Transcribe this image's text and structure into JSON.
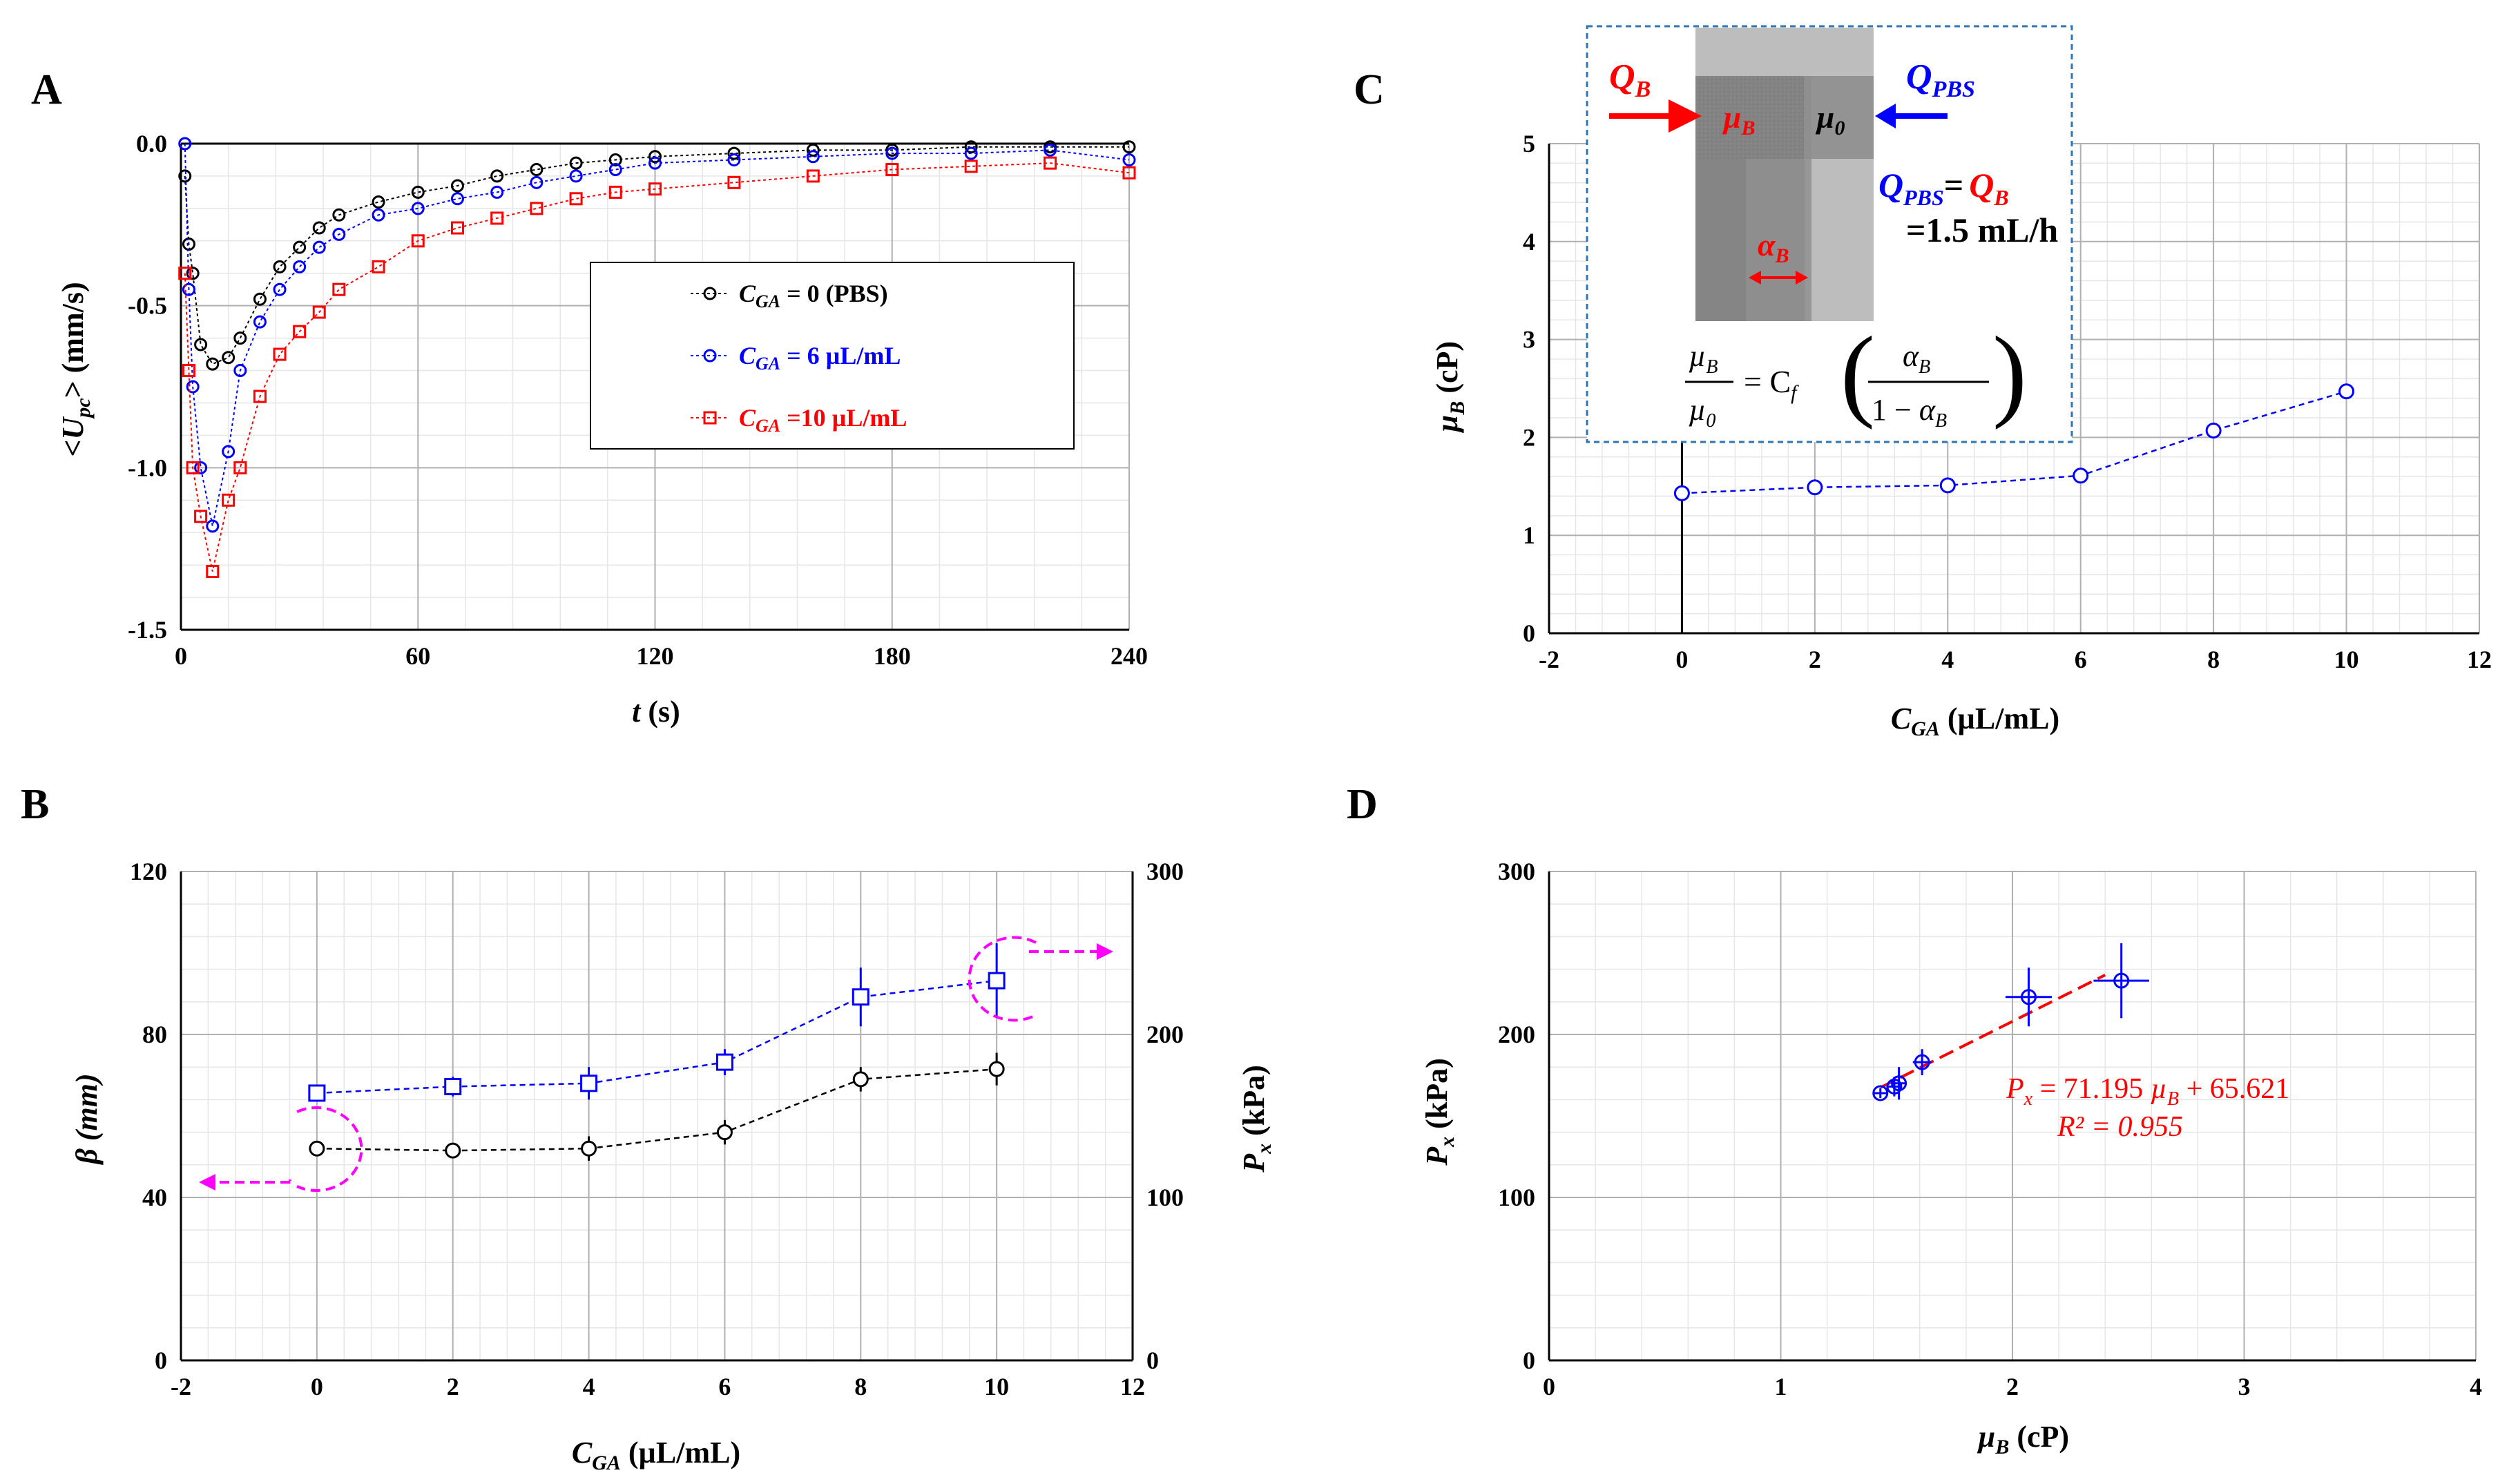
{
  "panels": {
    "A": {
      "label": "A"
    },
    "B": {
      "label": "B"
    },
    "C": {
      "label": "C"
    },
    "D": {
      "label": "D"
    }
  },
  "chart_data": [
    {
      "panel": "A",
      "type": "scatter",
      "xlabel": "t (s)",
      "ylabel": "<Upc> (mm/s)",
      "ylabel_parts": {
        "pre": "<",
        "main": "U",
        "sub": "pc",
        "post": "> (mm/s)"
      },
      "xlabel_parts": {
        "main": "t",
        "post": " (s)"
      },
      "xlim": [
        0,
        240
      ],
      "ylim": [
        -1.5,
        0
      ],
      "xticks": [
        "0",
        "60",
        "120",
        "180",
        "240"
      ],
      "yticks": [
        "0.0",
        "-0.5",
        "-1.0",
        "-1.5"
      ],
      "xtick_values": [
        0,
        60,
        120,
        180,
        240
      ],
      "ytick_values": [
        0,
        -0.5,
        -1.0,
        -1.5
      ],
      "grid": true,
      "legend_position": "center-right",
      "series": [
        {
          "name": "CGA = 0 (PBS)",
          "legend_var": "C",
          "legend_sub": "GA",
          "legend_rest": " = 0 (PBS)",
          "color": "#000000",
          "marker": "circle",
          "x": [
            1,
            2,
            3,
            5,
            8,
            12,
            15,
            20,
            25,
            30,
            35,
            40,
            50,
            60,
            70,
            80,
            90,
            100,
            110,
            120,
            140,
            160,
            180,
            200,
            220,
            240
          ],
          "y": [
            -0.1,
            -0.31,
            -0.4,
            -0.62,
            -0.68,
            -0.66,
            -0.6,
            -0.48,
            -0.38,
            -0.32,
            -0.26,
            -0.22,
            -0.18,
            -0.15,
            -0.13,
            -0.1,
            -0.08,
            -0.06,
            -0.05,
            -0.04,
            -0.03,
            -0.02,
            -0.02,
            -0.01,
            -0.01,
            -0.01
          ]
        },
        {
          "name": "CGA = 6 µL/mL",
          "legend_var": "C",
          "legend_sub": "GA",
          "legend_rest": " = 6 µL/mL",
          "color": "#0000ff",
          "marker": "circle",
          "x": [
            1,
            2,
            3,
            5,
            8,
            12,
            15,
            20,
            25,
            30,
            35,
            40,
            50,
            60,
            70,
            80,
            90,
            100,
            110,
            120,
            140,
            160,
            180,
            200,
            220,
            240
          ],
          "y": [
            0,
            -0.45,
            -0.75,
            -1.0,
            -1.18,
            -0.95,
            -0.7,
            -0.55,
            -0.45,
            -0.38,
            -0.32,
            -0.28,
            -0.22,
            -0.2,
            -0.17,
            -0.15,
            -0.12,
            -0.1,
            -0.08,
            -0.06,
            -0.05,
            -0.04,
            -0.03,
            -0.03,
            -0.02,
            -0.05
          ]
        },
        {
          "name": "CGA =10 µL/mL",
          "legend_var": "C",
          "legend_sub": "GA",
          "legend_rest": " =10 µL/mL",
          "color": "#ff0000",
          "marker": "square",
          "x": [
            1,
            2,
            3,
            5,
            8,
            12,
            15,
            20,
            25,
            30,
            35,
            40,
            50,
            60,
            70,
            80,
            90,
            100,
            110,
            120,
            140,
            160,
            180,
            200,
            220,
            240
          ],
          "y": [
            -0.4,
            -0.7,
            -1.0,
            -1.15,
            -1.32,
            -1.1,
            -1.0,
            -0.78,
            -0.65,
            -0.58,
            -0.52,
            -0.45,
            -0.38,
            -0.3,
            -0.26,
            -0.23,
            -0.2,
            -0.17,
            -0.15,
            -0.14,
            -0.12,
            -0.1,
            -0.08,
            -0.07,
            -0.06,
            -0.09
          ]
        }
      ]
    },
    {
      "panel": "B",
      "type": "line",
      "xlabel": "CGA (µL/mL)",
      "xlabel_parts": {
        "main": "C",
        "sub": "GA",
        "post": " (µL/mL)"
      },
      "ylabel": "β (mm)",
      "y2label": "Px (kPa)",
      "y2label_parts": {
        "main": "P",
        "sub": "x",
        "post": " (kPa)"
      },
      "xlim": [
        -2,
        12
      ],
      "ylim": [
        0,
        120
      ],
      "y2lim": [
        0,
        300
      ],
      "xticks": [
        "-2",
        "0",
        "2",
        "4",
        "6",
        "8",
        "10",
        "12"
      ],
      "yticks": [
        "0",
        "40",
        "80",
        "120"
      ],
      "y2ticks": [
        "0",
        "100",
        "200",
        "300"
      ],
      "xtick_values": [
        -2,
        0,
        2,
        4,
        6,
        8,
        10,
        12
      ],
      "ytick_values": [
        0,
        40,
        80,
        120
      ],
      "y2tick_values": [
        0,
        100,
        200,
        300
      ],
      "grid": true,
      "series": [
        {
          "name": "β",
          "axis": "left",
          "color": "#000000",
          "marker": "circle",
          "x": [
            0,
            2,
            4,
            6,
            8,
            10
          ],
          "y": [
            52,
            51.5,
            52,
            56,
            69,
            71.5
          ],
          "err": [
            1.5,
            1.5,
            3,
            3,
            3,
            4
          ]
        },
        {
          "name": "Px",
          "axis": "right",
          "color": "#0000ff",
          "marker": "square",
          "x": [
            0,
            2,
            4,
            6,
            8,
            10
          ],
          "y": [
            164,
            168,
            170,
            183,
            223,
            233
          ],
          "err": [
            3,
            6,
            10,
            8,
            18,
            23
          ]
        }
      ]
    },
    {
      "panel": "C",
      "type": "line",
      "xlabel": "CGA (µL/mL)",
      "xlabel_parts": {
        "main": "C",
        "sub": "GA",
        "post": " (µL/mL)"
      },
      "ylabel": "µB (cP)",
      "ylabel_parts": {
        "main": "µ",
        "sub": "B",
        "post": " (cP)"
      },
      "xlim": [
        -2,
        12
      ],
      "ylim": [
        0,
        5
      ],
      "xticks": [
        "-2",
        "0",
        "2",
        "4",
        "6",
        "8",
        "10",
        "12"
      ],
      "yticks": [
        "0",
        "1",
        "2",
        "3",
        "4",
        "5"
      ],
      "xtick_values": [
        -2,
        0,
        2,
        4,
        6,
        8,
        10,
        12
      ],
      "ytick_values": [
        0,
        1,
        2,
        3,
        4,
        5
      ],
      "grid": true,
      "series": [
        {
          "name": "µB",
          "color": "#0000ff",
          "marker": "circle",
          "x": [
            0,
            2,
            4,
            6,
            8,
            10
          ],
          "y": [
            1.43,
            1.49,
            1.51,
            1.61,
            2.07,
            2.47
          ],
          "err": [
            0.03,
            0.03,
            0.03,
            0.04,
            0.08,
            0.07
          ]
        }
      ],
      "inset": {
        "Q_B_main": "Q",
        "Q_B_sub": "B",
        "Q_PBS_main": "Q",
        "Q_PBS_sub": "PBS",
        "mu_B_main": "µ",
        "mu_B_sub": "B",
        "mu_0_main": "µ",
        "mu_0_sub": "0",
        "alpha_main": "α",
        "alpha_sub": "B",
        "eq_line1_sep": "=",
        "flow_rate": "=1.5 mL/h",
        "eq_cf": "= C",
        "eq_cf_sub": "f",
        "eq_den_prefix": "1 − "
      }
    },
    {
      "panel": "D",
      "type": "scatter",
      "xlabel": "µB (cP)",
      "xlabel_parts": {
        "main": "µ",
        "sub": "B",
        "post": " (cP)"
      },
      "ylabel": "Px (kPa)",
      "ylabel_parts": {
        "main": "P",
        "sub": "x",
        "post": " (kPa)"
      },
      "xlim": [
        0,
        4
      ],
      "ylim": [
        0,
        300
      ],
      "xticks": [
        "0",
        "1",
        "2",
        "3",
        "4"
      ],
      "yticks": [
        "0",
        "100",
        "200",
        "300"
      ],
      "xtick_values": [
        0,
        1,
        2,
        3,
        4
      ],
      "ytick_values": [
        0,
        100,
        200,
        300
      ],
      "grid": true,
      "series": [
        {
          "name": "Px vs µB",
          "color": "#0000ff",
          "marker": "circle",
          "x": [
            1.43,
            1.49,
            1.51,
            1.61,
            2.07,
            2.47
          ],
          "y": [
            164,
            168,
            170,
            183,
            223,
            233
          ],
          "xerr": [
            0.03,
            0.03,
            0.03,
            0.04,
            0.1,
            0.12
          ],
          "yerr": [
            3,
            6,
            10,
            8,
            18,
            23
          ]
        }
      ],
      "fit": {
        "slope": 71.195,
        "intercept": 65.621,
        "x_range": [
          1.43,
          2.4
        ],
        "color": "#ff0000",
        "equation": "Px = 71.195 µB + 65.621",
        "eq_parts": {
          "p": "P",
          "psub": "x",
          "mid": " = 71.195 ",
          "mu": "µ",
          "musub": "B",
          "end": " + 65.621"
        },
        "r2": "R² = 0.955"
      }
    }
  ]
}
